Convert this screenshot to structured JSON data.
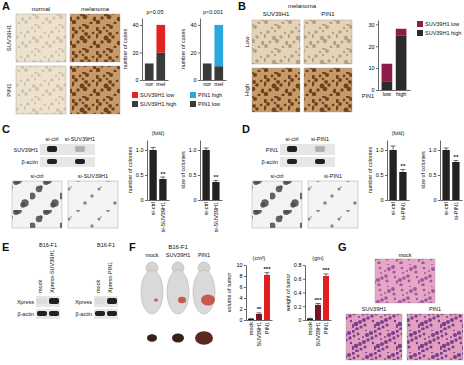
{
  "panels": {
    "A": {
      "label": "A",
      "columns": [
        "normal",
        "melanoma"
      ],
      "rows": [
        "SUV39H1",
        "PIN1"
      ]
    },
    "B": {
      "label": "B",
      "header": "melanoma",
      "columns": [
        "SUV39H1",
        "PIN1"
      ],
      "rows": [
        "Low",
        "High"
      ]
    },
    "C": {
      "label": "C",
      "lanes": [
        "si-ctrl",
        "si-SUV39H1"
      ],
      "bands": [
        "SUV39H1",
        "β-actin"
      ],
      "images": [
        "si-ctrl",
        "si-SUV39H1"
      ]
    },
    "D": {
      "label": "D",
      "lanes": [
        "si-ctrl",
        "si-PIN1"
      ],
      "bands": [
        "PIN1",
        "β-actin"
      ],
      "images": [
        "si-ctrl",
        "si-PIN1"
      ]
    },
    "E": {
      "label": "E",
      "blots": [
        {
          "header": "B16-F1",
          "lanes": [
            "mock",
            "Xpress-SUV39H1"
          ],
          "bands": [
            "Xpress",
            "β-actin"
          ]
        },
        {
          "header": "B16-F1",
          "lanes": [
            "mock",
            "Xpress-PIN1"
          ],
          "bands": [
            "Xpress",
            "β-actin"
          ]
        }
      ]
    },
    "F": {
      "label": "F",
      "header": "B16-F1",
      "groups": [
        "mock",
        "SUV39H1",
        "PIN1"
      ]
    },
    "G": {
      "label": "G",
      "images": [
        "mock",
        "SUV39H1",
        "PIN1"
      ]
    }
  },
  "chart_data": [
    {
      "type": "bar",
      "stacked": true,
      "annotation": "p<0.05",
      "y_label": "number of cases",
      "categories": [
        "nor",
        "mel"
      ],
      "ylim": [
        0,
        45
      ],
      "yticks": [
        0,
        20,
        40
      ],
      "legend": "bottom",
      "series": [
        {
          "name": "SUV39H1 high",
          "color": "#3a3a3a",
          "values": [
            12,
            20
          ]
        },
        {
          "name": "SUV39H1 low",
          "color": "#e3231f",
          "values": [
            0,
            20
          ]
        }
      ]
    },
    {
      "type": "bar",
      "stacked": true,
      "annotation": "p<0.001",
      "y_label": "number of cases",
      "categories": [
        "nor",
        "mel"
      ],
      "ylim": [
        0,
        45
      ],
      "yticks": [
        0,
        20,
        40
      ],
      "legend": "bottom",
      "series": [
        {
          "name": "PIN1 low",
          "color": "#3a3a3a",
          "values": [
            12,
            10
          ]
        },
        {
          "name": "PIN1 high",
          "color": "#29a8df",
          "values": [
            0,
            30
          ]
        }
      ]
    },
    {
      "type": "bar",
      "stacked": true,
      "x_label": "PIN1",
      "categories": [
        "low",
        "high"
      ],
      "ylim": [
        0,
        32
      ],
      "yticks": [
        0,
        10,
        20,
        30
      ],
      "legend": "right",
      "series": [
        {
          "name": "SUV39H1 high",
          "color": "#2b2b2b",
          "values": [
            4,
            25
          ]
        },
        {
          "name": "SUV39H1 low",
          "color": "#8e1b4b",
          "values": [
            8,
            3
          ]
        }
      ]
    },
    {
      "type": "bar",
      "title": "(fold)",
      "y_label": "number of colonies",
      "categories": [
        "si-ctrl",
        "si-SUV39H1"
      ],
      "values": [
        1,
        0.42
      ],
      "errors": [
        0.05,
        0.04
      ],
      "value_annotations": [
        null,
        "**"
      ],
      "color": "#222222",
      "ylim": [
        0,
        1.2
      ],
      "yticks": [
        0,
        0.5,
        {
          "value": 1,
          "label": "1.0"
        }
      ]
    },
    {
      "type": "bar",
      "y_label": "size of colonies",
      "categories": [
        "si-ctrl",
        "si-SUV39H1"
      ],
      "values": [
        1,
        0.36
      ],
      "errors": [
        0.04,
        0.03
      ],
      "value_annotations": [
        null,
        "**"
      ],
      "color": "#222222",
      "ylim": [
        0,
        1.2
      ],
      "yticks": [
        0,
        0.5,
        {
          "value": 1,
          "label": "1.0"
        }
      ]
    },
    {
      "type": "bar",
      "title": "(fold)",
      "y_label": "number of colonies",
      "categories": [
        "si-ctrl",
        "si-PIN1"
      ],
      "values": [
        1,
        0.56
      ],
      "errors": [
        0.08,
        0.05
      ],
      "value_annotations": [
        null,
        "**"
      ],
      "color": "#222222",
      "ylim": [
        0,
        1.2
      ],
      "yticks": [
        0,
        0.5,
        {
          "value": 1,
          "label": "1.0"
        }
      ]
    },
    {
      "type": "bar",
      "y_label": "size of colonies",
      "categories": [
        "si-ctrl",
        "si-PIN1"
      ],
      "values": [
        1,
        0.76
      ],
      "errors": [
        0.04,
        0.03
      ],
      "value_annotations": [
        null,
        "**"
      ],
      "color": "#222222",
      "ylim": [
        0,
        1.2
      ],
      "yticks": [
        0,
        0.5,
        {
          "value": 1,
          "label": "1.0"
        }
      ]
    },
    {
      "type": "bar",
      "title": "(cm³)",
      "y_label": "volume of tumor",
      "categories": [
        "mock",
        "SUV39H1",
        "PIN1"
      ],
      "values": [
        0.2,
        1.1,
        8.2
      ],
      "errors": [
        0.05,
        0.2,
        0.4
      ],
      "value_annotations": [
        null,
        "**",
        "***"
      ],
      "colors": [
        "#1a1a1a",
        "#7a1424",
        "#e0201f"
      ],
      "ylim": [
        0,
        10
      ],
      "yticks": [
        0,
        2,
        4,
        6,
        8,
        10
      ]
    },
    {
      "type": "bar",
      "title": "(gm)",
      "y_label": "weight of tumor",
      "categories": [
        "mock",
        "SUV39H1",
        "PIN1"
      ],
      "values": [
        0.02,
        0.22,
        0.64
      ],
      "errors": [
        0.005,
        0.02,
        0.03
      ],
      "value_annotations": [
        null,
        "***",
        "***"
      ],
      "colors": [
        "#1a1a1a",
        "#7a1424",
        "#e0201f"
      ],
      "ylim": [
        0,
        0.8
      ],
      "yticks": [
        0,
        0.2,
        0.4,
        0.6,
        0.8
      ]
    }
  ]
}
